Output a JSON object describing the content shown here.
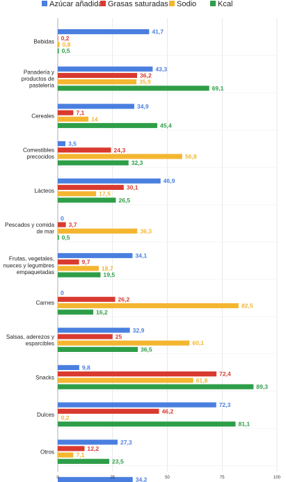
{
  "chart_data": {
    "type": "bar",
    "orientation": "horizontal",
    "title": "",
    "xlabel": "",
    "ylabel": "",
    "xlim": [
      0,
      100
    ],
    "xticks": [
      "0",
      "25",
      "50",
      "75",
      "100"
    ],
    "grid": true,
    "legend_position": "top",
    "categories": [
      [
        "Bebidas"
      ],
      [
        "Panadería y",
        "productos de",
        "pastelería"
      ],
      [
        "Cereales"
      ],
      [
        "Comestibles",
        "precocidos"
      ],
      [
        "Lácteos"
      ],
      [
        "Pescados y comida",
        "de mar"
      ],
      [
        "Frutas, vegetales,",
        "nueces y legumbres",
        "empaquetadas"
      ],
      [
        "Carnes"
      ],
      [
        "Salsas, aderezos y",
        "esparcibles"
      ],
      [
        "Snacks"
      ],
      [
        "Dulces"
      ],
      [
        "Otros"
      ],
      [
        "Todos los alimentos",
        "o bebidas"
      ]
    ],
    "series": [
      {
        "name": "Azúcar añadida",
        "color": "#4A7FE0",
        "values": [
          41.7,
          43.3,
          34.9,
          3.5,
          46.9,
          0,
          34.1,
          0,
          32.9,
          9.8,
          72.3,
          27.3,
          34.2
        ],
        "labels": [
          "41,7",
          "43,3",
          "34,9",
          "3,5",
          "46,9",
          "0",
          "34,1",
          "0",
          "32,9",
          "9,8",
          "72,3",
          "27,3",
          "34,2"
        ]
      },
      {
        "name": "Grasas saturadas",
        "color": "#D93A2F",
        "values": [
          0.2,
          36.2,
          7.1,
          24.3,
          30.1,
          3.7,
          9.7,
          26.2,
          25,
          72.4,
          46.2,
          12.2,
          23.2
        ],
        "labels": [
          "0,2",
          "36,2",
          "7,1",
          "24,3",
          "30,1",
          "3,7",
          "9,7",
          "26,2",
          "25",
          "72,4",
          "46,2",
          "12,2",
          "23,2"
        ]
      },
      {
        "name": "Sodio",
        "color": "#F4B631",
        "values": [
          0.8,
          35.9,
          14,
          56.8,
          17.5,
          36.3,
          18.7,
          82.5,
          60.1,
          61.8,
          0.2,
          7.1,
          29.6
        ],
        "labels": [
          "0,8",
          "35,9",
          "14",
          "56,8",
          "17,5",
          "36,3",
          "18,7",
          "82,5",
          "60,1",
          "61,8",
          "0,2",
          "7,1",
          "29,6"
        ]
      },
      {
        "name": "Kcal",
        "color": "#2E9E48",
        "values": [
          0.5,
          69.1,
          45.4,
          32.3,
          26.5,
          0.5,
          19.5,
          16.2,
          36.5,
          89.3,
          81.1,
          23.5,
          37
        ],
        "labels": [
          "0,5",
          "69,1",
          "45,4",
          "32,3",
          "26,5",
          "0,5",
          "19,5",
          "16,2",
          "36,5",
          "89,3",
          "81,1",
          "23,5",
          "37"
        ]
      }
    ]
  }
}
